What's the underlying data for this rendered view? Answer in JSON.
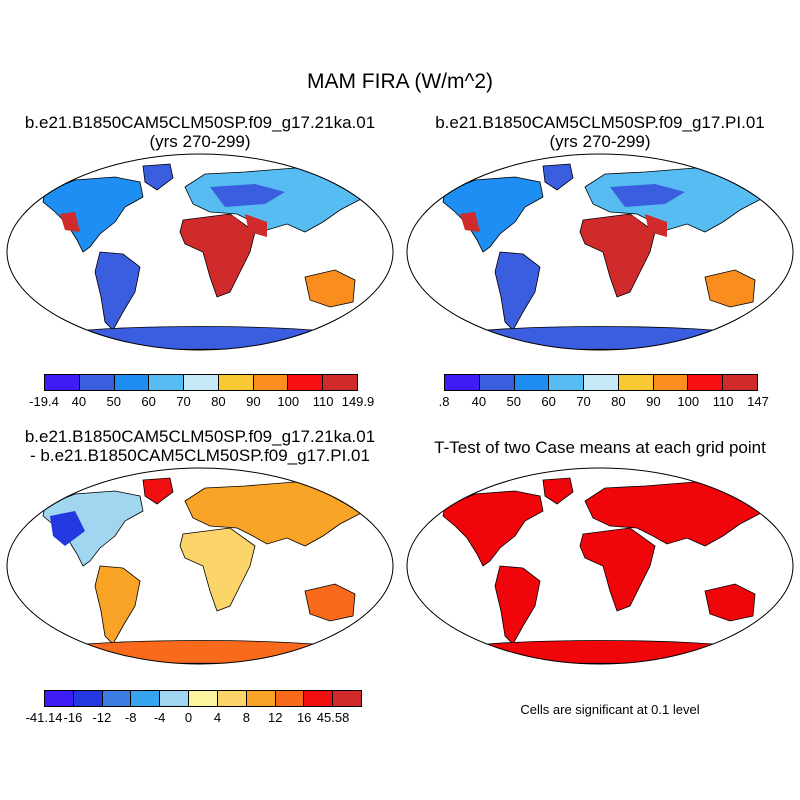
{
  "title": "MAM FIRA (W/m^2)",
  "panels": [
    {
      "title_line1": "b.e21.B1850CAM5CLM50SP.f09_g17.21ka.01",
      "title_line2": "(yrs 270-299)"
    },
    {
      "title_line1": "b.e21.B1850CAM5CLM50SP.f09_g17.PI.01",
      "title_line2": "(yrs 270-299)"
    },
    {
      "title_line1": "b.e21.B1850CAM5CLM50SP.f09_g17.21ka.01",
      "title_line2": "- b.e21.B1850CAM5CLM50SP.f09_g17.PI.01"
    },
    {
      "title_line1": "T-Test of two Case means at each grid point",
      "title_line2": ""
    }
  ],
  "colorbars": {
    "case1": {
      "labels": [
        "-19.4",
        "40",
        "50",
        "60",
        "70",
        "80",
        "90",
        "100",
        "110",
        "149.9"
      ],
      "colors": [
        "#3d1cf5",
        "#3b5de0",
        "#1e8ef2",
        "#56bcf2",
        "#c6e9f7",
        "#f9c935",
        "#f98d1d",
        "#f71010",
        "#d12a2a"
      ]
    },
    "case2": {
      "labels": [
        ".8",
        "40",
        "50",
        "60",
        "70",
        "80",
        "90",
        "100",
        "110",
        "147"
      ],
      "colors": [
        "#3d1cf5",
        "#3b5de0",
        "#1e8ef2",
        "#56bcf2",
        "#c6e9f7",
        "#f9c935",
        "#f98d1d",
        "#f71010",
        "#d12a2a"
      ]
    },
    "diff": {
      "labels": [
        "-41.14",
        "-16",
        "-12",
        "-8",
        "-4",
        "0",
        "4",
        "8",
        "12",
        "16",
        "45.58"
      ],
      "colors": [
        "#3d1cf5",
        "#2438e0",
        "#3b7de0",
        "#37a4f0",
        "#a0d6ef",
        "#fcf5a0",
        "#fcd56a",
        "#f9a426",
        "#f96a1c",
        "#f20f0f",
        "#d12a2a"
      ]
    }
  },
  "significance_note": "Cells are significant at 0.1 level",
  "colors": {
    "significant": "#f0060a",
    "land_outline": "#000000",
    "ocean": "#ffffff"
  }
}
